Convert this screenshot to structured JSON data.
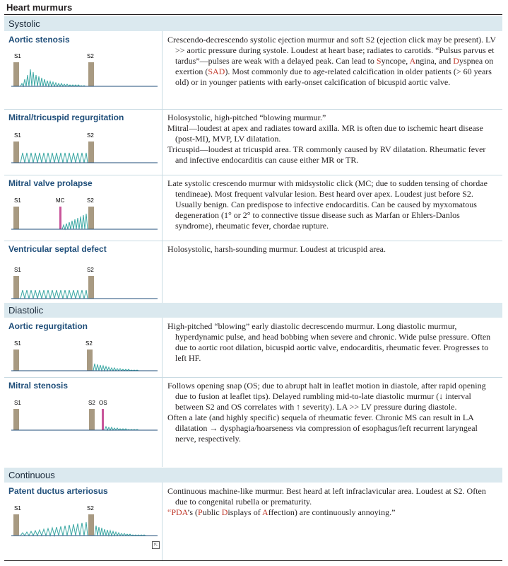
{
  "page_title": "Heart murmurs",
  "sections": {
    "systolic": "Systolic",
    "diastolic": "Diastolic",
    "continuous": "Continuous"
  },
  "murmurs": {
    "aortic_stenosis": {
      "title": "Aortic stenosis",
      "labels": [
        "S1",
        "S2"
      ],
      "desc_1": "Crescendo-decrescendo systolic ejection murmur and soft S2 (ejection click may be present). LV >> aortic pressure during systole. Loudest at heart base; radiates to carotids. “Pulsus parvus et tardus”—pulses are weak with a delayed peak. Can lead to ",
      "syncope_initial": "S",
      "syncope_rest": "yncope, ",
      "angina_initial": "A",
      "angina_rest": "ngina, and ",
      "dyspnea_initial": "D",
      "dyspnea_rest": "yspnea on exertion (",
      "sad": "SAD",
      "desc_2": "). Most commonly due to age-related calcification in older patients (> 60 years old) or in younger patients with early-onset calcification of bicuspid aortic valve."
    },
    "mitral_tricuspid_regurgitation": {
      "title": "Mitral/tricuspid regurgitation",
      "labels": [
        "S1",
        "S2"
      ],
      "desc_p1": "Holosystolic, high-pitched “blowing murmur.”",
      "desc_p2": "Mitral—loudest at apex and radiates toward axilla. MR is often due to ischemic heart disease (post-MI), MVP, LV dilatation.",
      "desc_p3": "Tricuspid—loudest at tricuspid area. TR commonly caused by RV dilatation. Rheumatic fever and infective endocarditis can cause either MR or TR."
    },
    "mitral_valve_prolapse": {
      "title": "Mitral valve prolapse",
      "labels": [
        "S1",
        "MC",
        "S2"
      ],
      "desc": "Late systolic crescendo murmur with midsystolic click (MC; due to sudden tensing of chordae tendineae). Most frequent valvular lesion. Best heard over apex. Loudest just before S2. Usually benign. Can predispose to infective endocarditis. Can be caused by myxomatous degeneration (1° or 2° to connective tissue disease such as Marfan or Ehlers-Danlos syndrome), rheumatic fever, chordae rupture."
    },
    "ventricular_septal_defect": {
      "title": "Ventricular septal defect",
      "labels": [
        "S1",
        "S2"
      ],
      "desc": "Holosystolic, harsh-sounding murmur. Loudest at tricuspid area."
    },
    "aortic_regurgitation": {
      "title": "Aortic regurgitation",
      "labels": [
        "S1",
        "S2"
      ],
      "desc": "High-pitched “blowing” early diastolic decrescendo murmur. Long diastolic murmur, hyperdynamic pulse, and head bobbing when severe and chronic. Wide pulse pressure. Often due to aortic root dilation, bicuspid aortic valve, endocarditis, rheumatic fever. Progresses to left HF."
    },
    "mitral_stenosis": {
      "title": "Mitral stenosis",
      "labels": [
        "S1",
        "S2",
        "OS"
      ],
      "desc_p1": "Follows opening snap (OS; due to abrupt halt in leaflet motion in diastole, after rapid opening due to fusion at leaflet tips). Delayed rumbling mid-to-late diastolic murmur (↓ interval between S2 and OS correlates with ↑ severity). LA >> LV pressure during diastole.",
      "desc_p2": "Often a late (and highly specific) sequela of rheumatic fever. Chronic MS can result in LA dilatation → dysphagia/hoarseness via compression of esophagus/left recurrent laryngeal nerve, respectively."
    },
    "patent_ductus_arteriosus": {
      "title": "Patent ductus arteriosus",
      "labels": [
        "S1",
        "S2"
      ],
      "desc_p1": "Continuous machine-like murmur. Best heard at left infraclavicular area. Loudest at S2. Often due to congenital rubella or prematurity.",
      "pda_quote": "“",
      "pda": "PDA",
      "pda_mid1": "’s (",
      "p_initial": "P",
      "p_rest": "ublic ",
      "d_initial": "D",
      "d_rest": "isplays of ",
      "a_initial": "A",
      "a_rest": "ffection) are continuously annoying.”"
    }
  },
  "colors": {
    "section_bg": "#dbe9ef",
    "title": "#1f4e79",
    "heart_sound_bar": "#a89a82",
    "murmur_wave": "#3aa7a3",
    "click_snap": "#c8559a",
    "highlight": "#c0392b"
  },
  "icons": [
    "expand-icon"
  ]
}
